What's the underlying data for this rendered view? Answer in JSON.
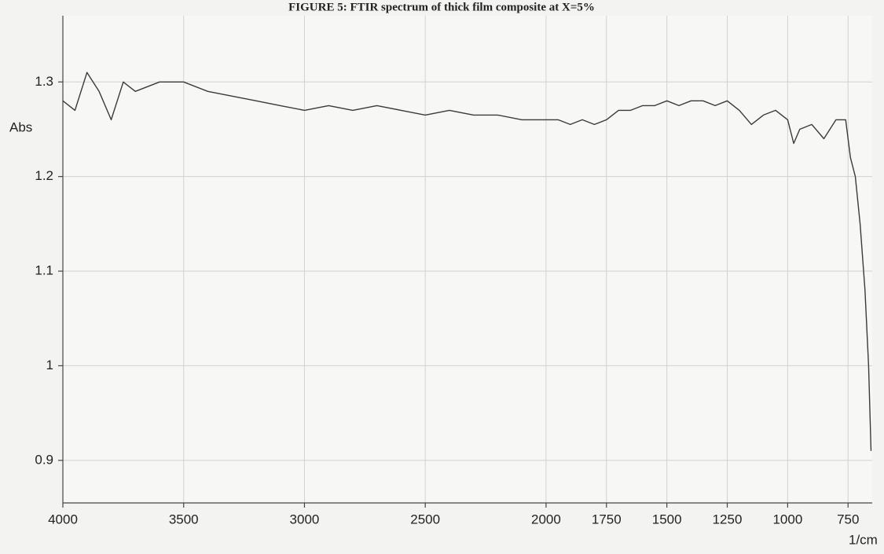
{
  "chart_data": {
    "type": "line",
    "title": "FIGURE 5: FTIR spectrum of thick film composite at X=5%",
    "xlabel": "1/cm",
    "ylabel": "Abs",
    "x": [
      4000,
      3950,
      3900,
      3850,
      3800,
      3750,
      3700,
      3600,
      3500,
      3400,
      3300,
      3200,
      3100,
      3000,
      2900,
      2800,
      2700,
      2600,
      2500,
      2400,
      2300,
      2200,
      2100,
      2000,
      1950,
      1900,
      1850,
      1800,
      1750,
      1700,
      1650,
      1600,
      1550,
      1500,
      1450,
      1400,
      1350,
      1300,
      1250,
      1200,
      1150,
      1100,
      1050,
      1000,
      975,
      950,
      900,
      850,
      800,
      760,
      740,
      720,
      700,
      680,
      665,
      655
    ],
    "series": [
      {
        "name": "Abs",
        "color": "#3a3a3a",
        "values": [
          1.28,
          1.27,
          1.31,
          1.29,
          1.26,
          1.3,
          1.29,
          1.3,
          1.3,
          1.29,
          1.285,
          1.28,
          1.275,
          1.27,
          1.275,
          1.27,
          1.275,
          1.27,
          1.265,
          1.27,
          1.265,
          1.265,
          1.26,
          1.26,
          1.26,
          1.255,
          1.26,
          1.255,
          1.26,
          1.27,
          1.27,
          1.275,
          1.275,
          1.28,
          1.275,
          1.28,
          1.28,
          1.275,
          1.28,
          1.27,
          1.255,
          1.265,
          1.27,
          1.26,
          1.235,
          1.25,
          1.255,
          1.24,
          1.26,
          1.26,
          1.22,
          1.2,
          1.15,
          1.08,
          1.0,
          0.91
        ]
      }
    ],
    "xlim": [
      4000,
      650
    ],
    "xticks": [
      4000,
      3500,
      3000,
      2500,
      2000,
      1750,
      1500,
      1250,
      1000,
      750
    ],
    "ylim": [
      0.855,
      1.37
    ],
    "yticks": [
      0.9,
      1,
      1.1,
      1.2,
      1.3
    ],
    "grid": true
  }
}
